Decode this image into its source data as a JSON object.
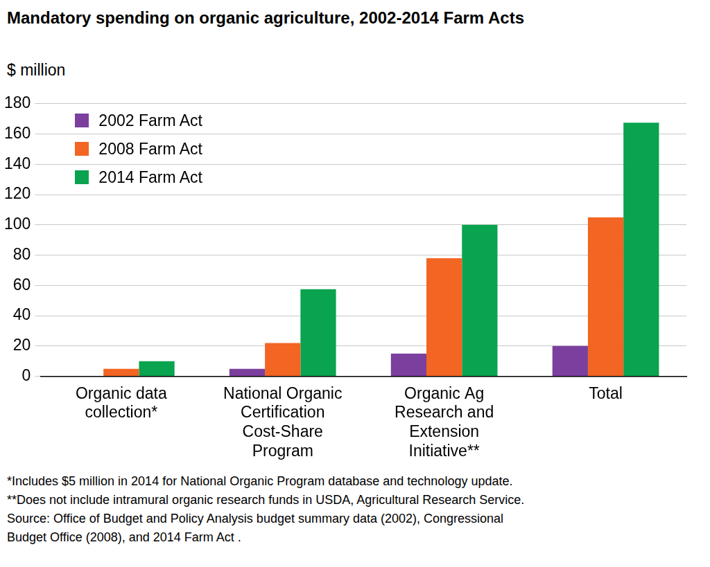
{
  "chart_data": {
    "type": "bar",
    "title": "Mandatory spending on organic agriculture, 2002-2014 Farm Acts",
    "y_label": "$ million",
    "categories": [
      "Organic data\ncollection*",
      "National Organic\nCertification\nCost-Share\nProgram",
      "Organic Ag\nResearch and\nExtension\nInitiative**",
      "Total"
    ],
    "series": [
      {
        "name": "2002 Farm Act",
        "color": "#7b3f9e",
        "values": [
          0,
          5,
          15,
          20
        ]
      },
      {
        "name": "2008 Farm Act",
        "color": "#f26522",
        "values": [
          5,
          22,
          78,
          105
        ]
      },
      {
        "name": "2014 Farm Act",
        "color": "#0aa34f",
        "values": [
          10,
          57.5,
          100,
          167.5
        ]
      }
    ],
    "ylim": [
      0,
      180
    ],
    "yticks": [
      0,
      20,
      40,
      60,
      80,
      100,
      120,
      140,
      160,
      180
    ],
    "grid": true,
    "legend": "top-left",
    "footnotes": [
      "*Includes $5 million in 2014 for National Organic Program database and technology update.",
      "**Does not include intramural organic research funds in USDA, Agricultural Research Service.",
      "Source:  Office of Budget and Policy Analysis budget summary data (2002), Congressional",
      "Budget Office (2008), and 2014 Farm Act ."
    ]
  }
}
